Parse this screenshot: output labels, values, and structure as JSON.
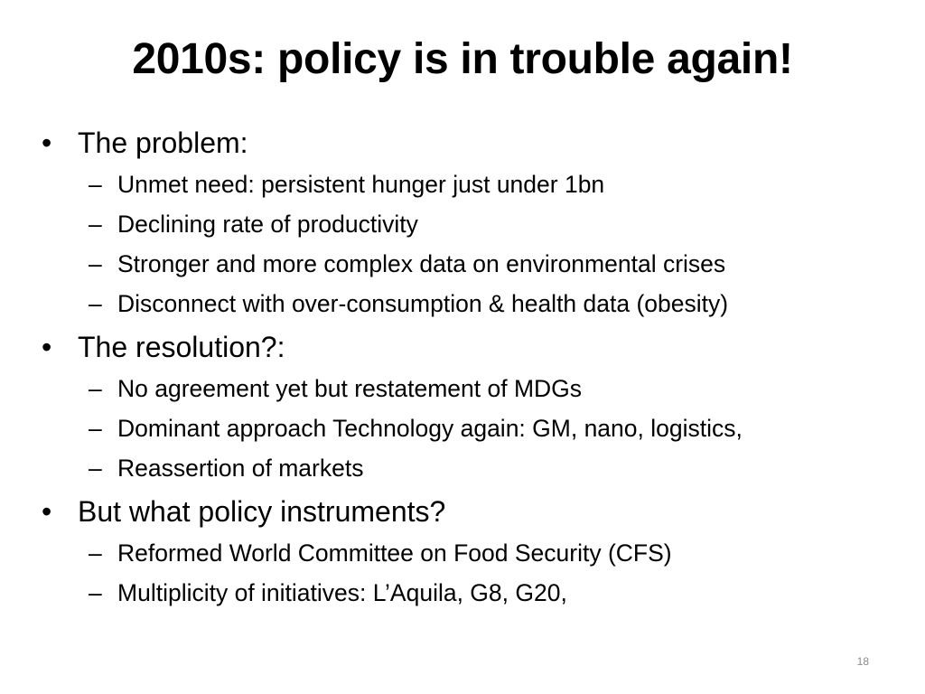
{
  "slide": {
    "title": "2010s: policy is in trouble again!",
    "bullets": [
      {
        "text": "The problem:",
        "subs": [
          "Unmet need: persistent hunger just under 1bn",
          "Declining rate of productivity",
          "Stronger and more complex data on environmental crises",
          "Disconnect with over-consumption & health data (obesity)"
        ]
      },
      {
        "text": "The resolution?:",
        "subs": [
          "No agreement yet but restatement of MDGs",
          "Dominant approach Technology again: GM, nano, logistics,",
          "Reassertion of markets"
        ]
      },
      {
        "text": "But what policy instruments?",
        "subs": [
          "Reformed World Committee on Food Security (CFS)",
          "Multiplicity of initiatives: L’Aquila, G8, G20,"
        ]
      }
    ],
    "page_number": "18",
    "bullet_glyph": "•",
    "sub_glyph": "–"
  }
}
